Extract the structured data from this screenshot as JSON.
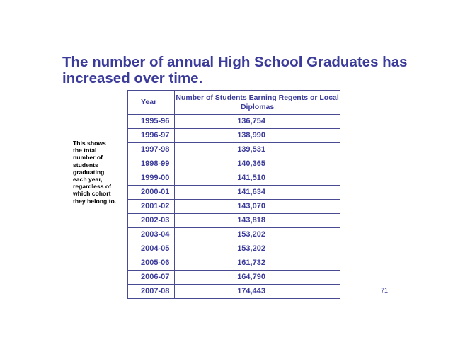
{
  "title": "The number of annual High School Graduates has increased over time.",
  "side_note": "This shows the total number of students graduating each year, regardless of which cohort they belong to.",
  "table": {
    "headers": {
      "year": "Year",
      "count": "Number of Students Earning Regents or Local Diplomas"
    },
    "rows": [
      {
        "year": "1995-96",
        "count": "136,754"
      },
      {
        "year": "1996-97",
        "count": "138,990"
      },
      {
        "year": "1997-98",
        "count": "139,531"
      },
      {
        "year": "1998-99",
        "count": "140,365"
      },
      {
        "year": "1999-00",
        "count": "141,510"
      },
      {
        "year": "2000-01",
        "count": "141,634"
      },
      {
        "year": "2001-02",
        "count": "143,070"
      },
      {
        "year": "2002-03",
        "count": "143,818"
      },
      {
        "year": "2003-04",
        "count": "153,202"
      },
      {
        "year": "2004-05",
        "count": "153,202"
      },
      {
        "year": "2005-06",
        "count": "161,732"
      },
      {
        "year": "2006-07",
        "count": "164,790"
      },
      {
        "year": "2007-08",
        "count": "174,443"
      }
    ]
  },
  "page_number": "71",
  "colors": {
    "text_blue": "#3B3B9A",
    "border": "#4A4A92"
  }
}
